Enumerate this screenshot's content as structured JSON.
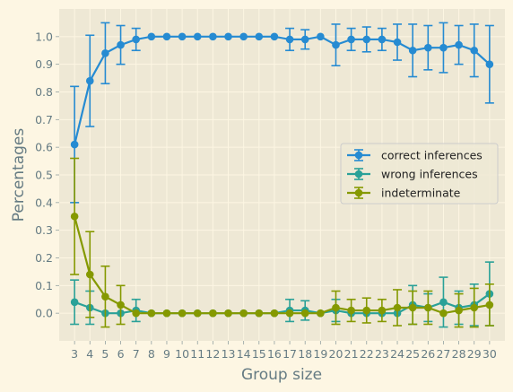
{
  "chart_data": {
    "type": "line",
    "xlabel": "Group size",
    "ylabel": "Percentages",
    "xlim": [
      2,
      31
    ],
    "ylim": [
      -0.1,
      1.1
    ],
    "yticks": [
      0.0,
      0.1,
      0.2,
      0.3,
      0.4,
      0.5,
      0.6,
      0.7,
      0.8,
      0.9,
      1.0
    ],
    "ytick_labels": [
      "0.0",
      "0.1",
      "0.2",
      "0.3",
      "0.4",
      "0.5",
      "0.6",
      "0.7",
      "0.8",
      "0.9",
      "1.0"
    ],
    "grid": true,
    "legend_position": "center-right",
    "x": [
      3,
      4,
      5,
      6,
      7,
      8,
      9,
      10,
      11,
      12,
      13,
      14,
      15,
      16,
      17,
      18,
      19,
      20,
      21,
      22,
      23,
      24,
      25,
      26,
      27,
      28,
      29,
      30
    ],
    "xtick_labels": [
      "3",
      "4",
      "5",
      "6",
      "7",
      "8",
      "9",
      "10",
      "11",
      "12",
      "13",
      "14",
      "15",
      "16",
      "17",
      "18",
      "19",
      "20",
      "21",
      "22",
      "23",
      "24",
      "25",
      "26",
      "27",
      "28",
      "29",
      "30"
    ],
    "series": [
      {
        "name": "correct inferences",
        "color": "#268bd2",
        "values": [
          0.61,
          0.84,
          0.94,
          0.97,
          0.99,
          1.0,
          1.0,
          1.0,
          1.0,
          1.0,
          1.0,
          1.0,
          1.0,
          1.0,
          0.99,
          0.99,
          1.0,
          0.97,
          0.99,
          0.99,
          0.99,
          0.98,
          0.95,
          0.96,
          0.96,
          0.97,
          0.95,
          0.9
        ],
        "errors": [
          0.21,
          0.165,
          0.11,
          0.07,
          0.04,
          0.0,
          0.0,
          0.0,
          0.0,
          0.0,
          0.0,
          0.0,
          0.0,
          0.0,
          0.04,
          0.035,
          0.0,
          0.075,
          0.04,
          0.045,
          0.04,
          0.065,
          0.095,
          0.08,
          0.09,
          0.07,
          0.095,
          0.14
        ]
      },
      {
        "name": "wrong inferences",
        "color": "#2aa198",
        "values": [
          0.04,
          0.02,
          0.0,
          0.0,
          0.01,
          0.0,
          0.0,
          0.0,
          0.0,
          0.0,
          0.0,
          0.0,
          0.0,
          0.0,
          0.01,
          0.01,
          0.0,
          0.01,
          0.0,
          0.0,
          0.0,
          0.0,
          0.03,
          0.02,
          0.04,
          0.02,
          0.03,
          0.07
        ],
        "errors": [
          0.08,
          0.06,
          0.0,
          0.0,
          0.04,
          0.0,
          0.0,
          0.0,
          0.0,
          0.0,
          0.0,
          0.0,
          0.0,
          0.0,
          0.04,
          0.035,
          0.0,
          0.04,
          0.0,
          0.0,
          0.0,
          0.0,
          0.07,
          0.05,
          0.09,
          0.06,
          0.075,
          0.115
        ]
      },
      {
        "name": "indeterminate",
        "color": "#859900",
        "values": [
          0.35,
          0.14,
          0.06,
          0.03,
          0.0,
          0.0,
          0.0,
          0.0,
          0.0,
          0.0,
          0.0,
          0.0,
          0.0,
          0.0,
          0.0,
          0.0,
          0.0,
          0.02,
          0.01,
          0.01,
          0.01,
          0.02,
          0.02,
          0.02,
          0.0,
          0.01,
          0.02,
          0.03
        ],
        "errors": [
          0.21,
          0.155,
          0.11,
          0.07,
          0.0,
          0.0,
          0.0,
          0.0,
          0.0,
          0.0,
          0.0,
          0.0,
          0.0,
          0.0,
          0.0,
          0.0,
          0.0,
          0.06,
          0.04,
          0.045,
          0.04,
          0.065,
          0.06,
          0.06,
          0.0,
          0.06,
          0.07,
          0.075
        ]
      }
    ]
  }
}
